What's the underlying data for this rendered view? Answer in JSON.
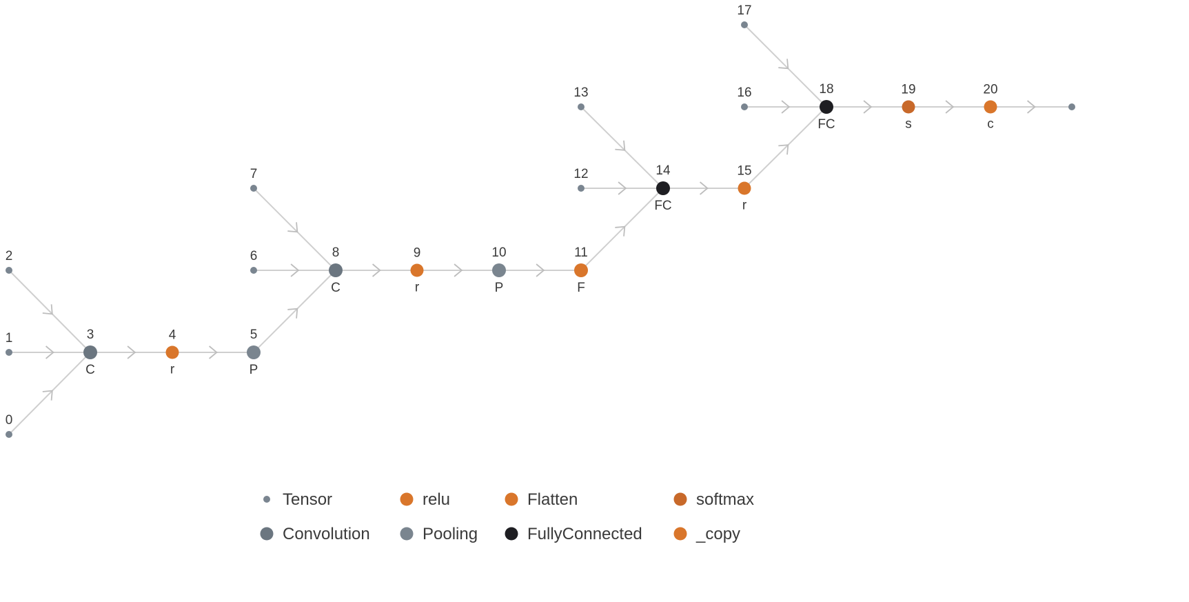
{
  "colors": {
    "tensor": "#7a8590",
    "convolution": "#6b7680",
    "pooling": "#7a858f",
    "relu": "#d9762b",
    "flatten": "#d9762b",
    "softmax": "#c8692a",
    "fullyconnected": "#1e1e22",
    "copy": "#d9762b",
    "edge": "#cfcfcf"
  },
  "nodes": [
    {
      "id": "0",
      "num": "0",
      "type": "tensor",
      "label": ""
    },
    {
      "id": "1",
      "num": "1",
      "type": "tensor",
      "label": ""
    },
    {
      "id": "2",
      "num": "2",
      "type": "tensor",
      "label": ""
    },
    {
      "id": "3",
      "num": "3",
      "type": "convolution",
      "label": "C"
    },
    {
      "id": "4",
      "num": "4",
      "type": "relu",
      "label": "r"
    },
    {
      "id": "5",
      "num": "5",
      "type": "pooling",
      "label": "P"
    },
    {
      "id": "6",
      "num": "6",
      "type": "tensor",
      "label": ""
    },
    {
      "id": "7",
      "num": "7",
      "type": "tensor",
      "label": ""
    },
    {
      "id": "8",
      "num": "8",
      "type": "convolution",
      "label": "C"
    },
    {
      "id": "9",
      "num": "9",
      "type": "relu",
      "label": "r"
    },
    {
      "id": "10",
      "num": "10",
      "type": "pooling",
      "label": "P"
    },
    {
      "id": "11",
      "num": "11",
      "type": "flatten",
      "label": "F"
    },
    {
      "id": "12",
      "num": "12",
      "type": "tensor",
      "label": ""
    },
    {
      "id": "13",
      "num": "13",
      "type": "tensor",
      "label": ""
    },
    {
      "id": "14",
      "num": "14",
      "type": "fullyconnected",
      "label": "FC"
    },
    {
      "id": "15",
      "num": "15",
      "type": "relu",
      "label": "r"
    },
    {
      "id": "16",
      "num": "16",
      "type": "tensor",
      "label": ""
    },
    {
      "id": "17",
      "num": "17",
      "type": "tensor",
      "label": ""
    },
    {
      "id": "18",
      "num": "18",
      "type": "fullyconnected",
      "label": "FC"
    },
    {
      "id": "19",
      "num": "19",
      "type": "softmax",
      "label": "s"
    },
    {
      "id": "20",
      "num": "20",
      "type": "copy",
      "label": "c"
    },
    {
      "id": "out",
      "num": "",
      "type": "tensor",
      "label": ""
    }
  ],
  "edges": [
    {
      "from": "0",
      "to": "3"
    },
    {
      "from": "1",
      "to": "3"
    },
    {
      "from": "2",
      "to": "3"
    },
    {
      "from": "3",
      "to": "4"
    },
    {
      "from": "4",
      "to": "5"
    },
    {
      "from": "5",
      "to": "8"
    },
    {
      "from": "6",
      "to": "8"
    },
    {
      "from": "7",
      "to": "8"
    },
    {
      "from": "8",
      "to": "9"
    },
    {
      "from": "9",
      "to": "10"
    },
    {
      "from": "10",
      "to": "11"
    },
    {
      "from": "11",
      "to": "14"
    },
    {
      "from": "12",
      "to": "14"
    },
    {
      "from": "13",
      "to": "14"
    },
    {
      "from": "14",
      "to": "15"
    },
    {
      "from": "15",
      "to": "18"
    },
    {
      "from": "16",
      "to": "18"
    },
    {
      "from": "17",
      "to": "18"
    },
    {
      "from": "18",
      "to": "19"
    },
    {
      "from": "19",
      "to": "20"
    },
    {
      "from": "20",
      "to": "out"
    }
  ],
  "legend": [
    {
      "type": "tensor",
      "label": "Tensor"
    },
    {
      "type": "relu",
      "label": "relu"
    },
    {
      "type": "flatten",
      "label": "Flatten"
    },
    {
      "type": "softmax",
      "label": "softmax"
    },
    {
      "type": "convolution",
      "label": "Convolution"
    },
    {
      "type": "pooling",
      "label": "Pooling"
    },
    {
      "type": "fullyconnected",
      "label": "FullyConnected"
    },
    {
      "type": "copy",
      "label": "_copy"
    }
  ]
}
